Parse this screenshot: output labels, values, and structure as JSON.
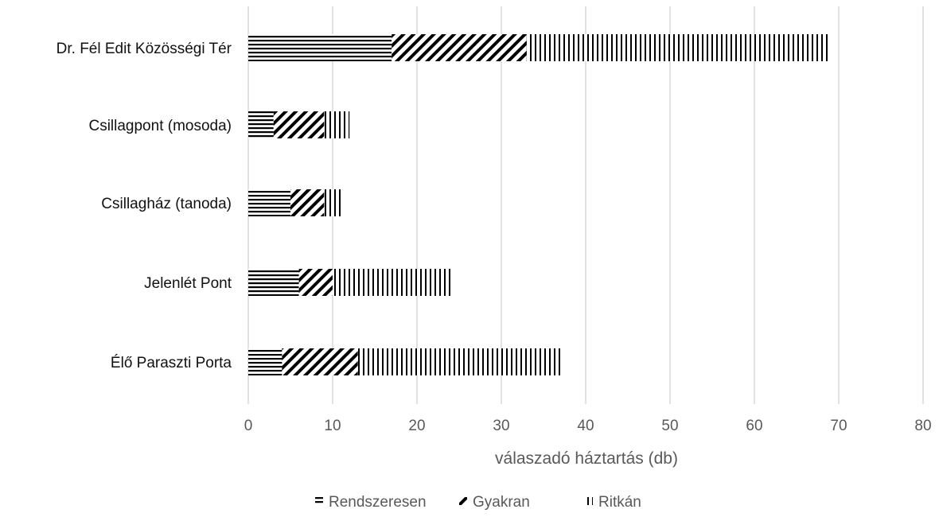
{
  "chart_data": {
    "type": "bar",
    "orientation": "horizontal",
    "stacked": true,
    "title": "",
    "xlabel": "válaszadó háztartás (db)",
    "ylabel": "",
    "xlim": [
      0,
      80
    ],
    "x_ticks": [
      0,
      10,
      20,
      30,
      40,
      50,
      60,
      70,
      80
    ],
    "grid": true,
    "legend_position": "bottom",
    "categories": [
      "Dr. Fél Edit Közösségi Tér",
      "Csillagpont (mosoda)",
      "Csillagház (tanoda)",
      "Jelenlét Pont",
      "Élő Paraszti Porta"
    ],
    "series": [
      {
        "name": "Rendszeresen",
        "pattern": "horizontal-lines",
        "values": [
          17,
          3,
          5,
          6,
          4
        ]
      },
      {
        "name": "Gyakran",
        "pattern": "diagonal-lines",
        "values": [
          16,
          6,
          4,
          4,
          9
        ]
      },
      {
        "name": "Ritkán",
        "pattern": "vertical-lines",
        "values": [
          36,
          3,
          2,
          14,
          24
        ]
      }
    ],
    "colors": {
      "pattern": "#000000",
      "background": "#ffffff",
      "grid": "#d9d9d9",
      "text": "#595959"
    }
  }
}
